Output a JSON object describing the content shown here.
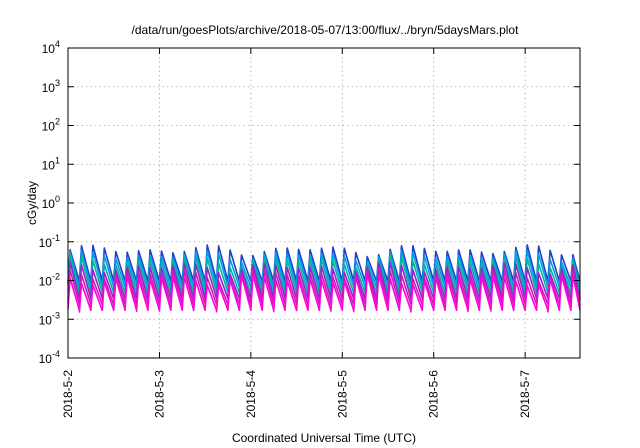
{
  "chart_data": {
    "type": "line",
    "title": "/data/run/goesPlots/archive/2018-05-07/13:00/flux/../bryn/5daysMars.plot",
    "xlabel": "Coordinated Universal Time (UTC)",
    "ylabel": "cGy/day",
    "x_tick_labels": [
      "2018-5-2",
      "2018-5-3",
      "2018-5-4",
      "2018-5-5",
      "2018-5-6",
      "2018-5-7"
    ],
    "y_scale": "log",
    "ylim": [
      0.0001,
      10000
    ],
    "y_tick_exponents": [
      "-4",
      "-3",
      "-2",
      "-1",
      "0",
      "1",
      "2",
      "3",
      "4"
    ],
    "y_tick_base": "10",
    "grid": true,
    "xlim_days": [
      0,
      5.6
    ],
    "sawtooth_period_days": 0.125,
    "series": [
      {
        "color": "#1f3fd0",
        "peak": 0.062,
        "trough": 0.0095
      },
      {
        "color": "#00a0e0",
        "peak": 0.045,
        "trough": 0.0068
      },
      {
        "color": "#00b4a0",
        "peak": 0.032,
        "trough": 0.0048
      },
      {
        "color": "#9a1fd0",
        "peak": 0.022,
        "trough": 0.0034
      },
      {
        "color": "#c81eb4",
        "peak": 0.015,
        "trough": 0.0024
      },
      {
        "color": "#ff00e0",
        "peak": 0.011,
        "trough": 0.0017
      }
    ]
  }
}
